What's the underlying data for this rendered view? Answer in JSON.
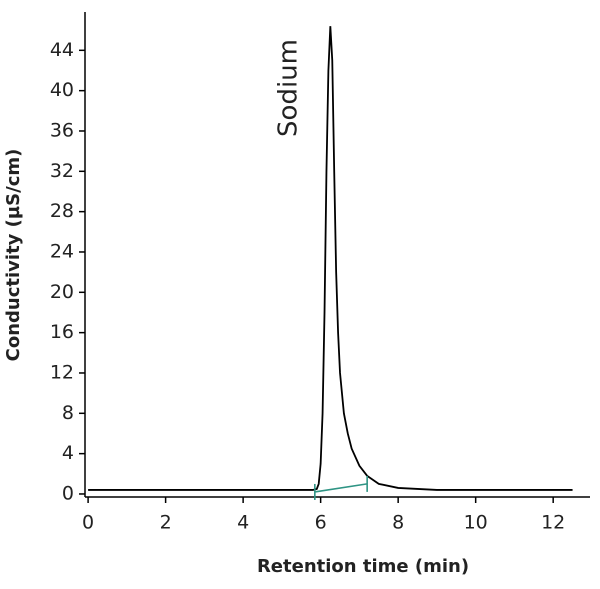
{
  "chart_data": {
    "type": "line",
    "x_label": "Retention time (min)",
    "y_label": "Conductivity (µS/cm)",
    "annotation": "Sodium",
    "xlim": [
      -0.08,
      12.95
    ],
    "xticks": [
      0,
      2,
      4,
      6,
      8,
      10,
      12
    ],
    "ylim": [
      -0.3,
      47.8
    ],
    "yticks": [
      0,
      4,
      8,
      12,
      16,
      20,
      24,
      28,
      32,
      36,
      40,
      44
    ],
    "series": [
      {
        "color": "#000000",
        "x": [
          0,
          5.8,
          5.9,
          5.95,
          6.0,
          6.05,
          6.1,
          6.15,
          6.2,
          6.25,
          6.3,
          6.35,
          6.4,
          6.45,
          6.5,
          6.6,
          6.7,
          6.8,
          7.0,
          7.2,
          7.5,
          8,
          9,
          10,
          12.5
        ],
        "values": [
          0.4,
          0.4,
          0.5,
          1,
          3,
          8,
          18,
          32,
          42,
          46.4,
          43,
          32,
          22,
          16,
          12,
          8,
          6,
          4.5,
          2.8,
          1.8,
          1,
          0.6,
          0.4,
          0.4,
          0.4
        ]
      },
      {
        "color": "#2e9484",
        "x": [
          5.85,
          7.2
        ],
        "values": [
          0.2,
          1.0
        ]
      }
    ]
  }
}
